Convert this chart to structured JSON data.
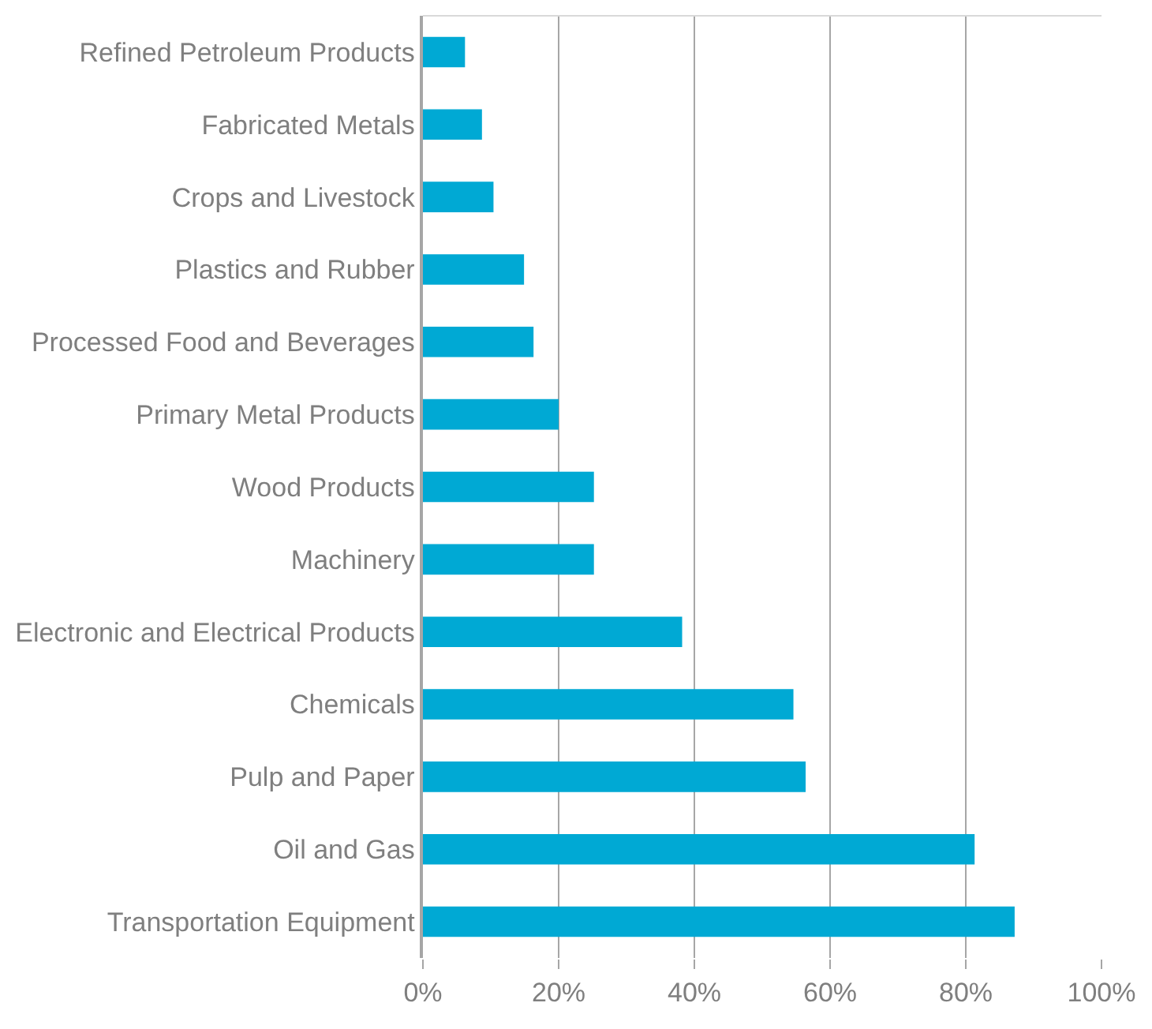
{
  "chart_data": {
    "type": "bar",
    "orientation": "horizontal",
    "categories": [
      "Refined Petroleum Products",
      "Fabricated Metals",
      "Crops and Livestock",
      "Plastics and Rubber",
      "Processed Food and Beverages",
      "Primary Metal Products",
      "Wood Products",
      "Machinery",
      "Electronic and Electrical Products",
      "Chemicals",
      "Pulp and Paper",
      "Oil and Gas",
      "Transportation Equipment"
    ],
    "values": [
      6.2,
      8.7,
      10.4,
      14.9,
      16.3,
      20,
      25.2,
      25.2,
      38.2,
      54.6,
      56.4,
      81.3,
      87.2
    ],
    "color": "#00a9d4",
    "xlim": [
      0,
      100
    ],
    "xticks": [
      {
        "value": 0,
        "label": "0%"
      },
      {
        "value": 20,
        "label": "20%"
      },
      {
        "value": 40,
        "label": "40%"
      },
      {
        "value": 60,
        "label": "60%"
      },
      {
        "value": 80,
        "label": "80%"
      },
      {
        "value": 100,
        "label": "100%"
      }
    ],
    "grid": "x",
    "legend": false
  }
}
